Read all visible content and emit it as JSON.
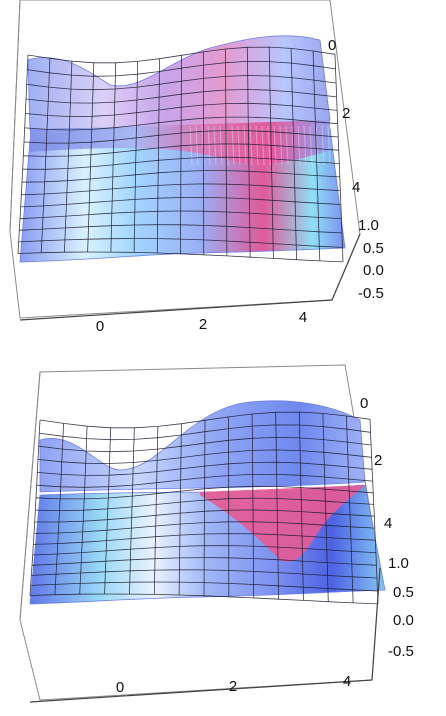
{
  "chart_data": [
    {
      "type": "surface3d",
      "title": "",
      "x_axis": {
        "range": [
          -1.5,
          4.5
        ],
        "ticks": [
          "0",
          "2",
          "4"
        ]
      },
      "y_axis": {
        "range": [
          -0.5,
          5
        ],
        "ticks": [
          "0",
          "2",
          "4"
        ]
      },
      "z_axis": {
        "range": [
          -0.5,
          1.0
        ],
        "ticks": [
          "1.0",
          "0.5",
          "0.0",
          "-0.5"
        ]
      },
      "mesh": {
        "rows": 15,
        "cols": 14
      },
      "feature": "front cliff where the mesh is cut, with vertical striped wall",
      "colors": {
        "low": "#6f7fe6",
        "mid": "#c9dcff",
        "high": "#e05a9a",
        "cyan": "#7fe3f0"
      }
    },
    {
      "type": "surface3d",
      "title": "",
      "x_axis": {
        "range": [
          -1.5,
          4.5
        ],
        "ticks": [
          "0",
          "2",
          "4"
        ]
      },
      "y_axis": {
        "range": [
          -0.5,
          5
        ],
        "ticks": [
          "0",
          "2",
          "4"
        ]
      },
      "z_axis": {
        "range": [
          -0.5,
          1.0
        ],
        "ticks": [
          "1.0",
          "0.5",
          "0.0",
          "-0.5"
        ]
      },
      "mesh": {
        "rows": 15,
        "cols": 14
      },
      "feature": "smooth cut face shaded pink",
      "colors": {
        "low": "#5f78e8",
        "mid": "#d4e0ff",
        "high": "#e85a93",
        "cyan": "#88e2f2"
      }
    }
  ]
}
